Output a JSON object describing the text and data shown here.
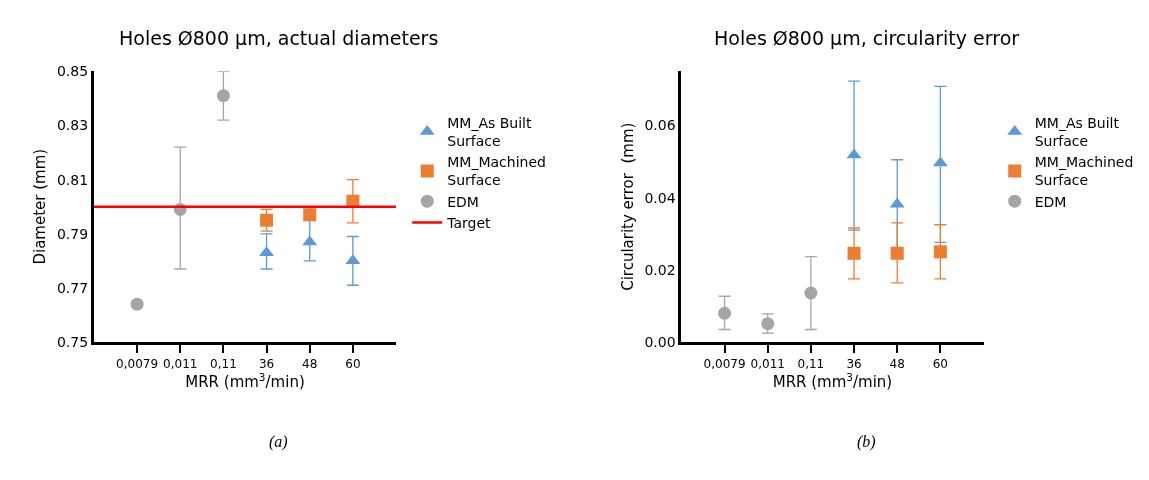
{
  "chart_data": [
    {
      "type": "scatter",
      "title": "Holes Ø800 µm, actual diameters",
      "xlabel": "MRR (mm$^{3}$/min)",
      "ylabel": "Diameter (mm)",
      "categories": [
        "0,0079",
        "0,011",
        "0,11",
        "36",
        "48",
        "60"
      ],
      "ylim": [
        0.75,
        0.85
      ],
      "yticks": [
        0.75,
        0.77,
        0.79,
        0.81,
        0.83,
        0.85
      ],
      "legend": "right",
      "series": [
        {
          "name": "MM_As Built Surface",
          "color": "#5b9bd5",
          "marker": "triangle",
          "values": [
            null,
            null,
            null,
            0.783,
            0.787,
            0.78
          ],
          "errors": [
            null,
            null,
            null,
            [
              0.777,
              0.79
            ],
            [
              0.78,
              0.795
            ],
            [
              0.771,
              0.789
            ]
          ]
        },
        {
          "name": "MM_Machined Surface",
          "color": "#ed7d31",
          "marker": "square",
          "values": [
            null,
            null,
            null,
            0.795,
            0.797,
            0.802
          ],
          "errors": [
            null,
            null,
            null,
            [
              0.791,
              0.799
            ],
            [
              0.795,
              0.799
            ],
            [
              0.794,
              0.81
            ]
          ]
        },
        {
          "name": "EDM",
          "color": "#a5a5a5",
          "marker": "circle",
          "values": [
            0.764,
            0.799,
            0.841,
            null,
            null,
            null
          ],
          "errors": [
            null,
            [
              0.777,
              0.822
            ],
            [
              0.832,
              0.85
            ],
            null,
            null,
            null
          ]
        }
      ],
      "ref_lines": [
        {
          "axis": "y",
          "value": 0.8,
          "label": "Target",
          "color": "#ff0000"
        }
      ],
      "annotations": [
        "(a)"
      ]
    },
    {
      "type": "scatter",
      "title": "Holes Ø800 µm, circularity error",
      "xlabel": "MRR (mm$^{3}$/min)",
      "ylabel": "Circularity error  (mm)",
      "categories": [
        "0,0079",
        "0,011",
        "0,11",
        "36",
        "48",
        "60"
      ],
      "ylim": [
        0,
        0.075
      ],
      "yticks": [
        {
          "value": 0,
          "label": "0.00"
        },
        {
          "value": 0.02,
          "label": "0.02"
        },
        {
          "value": 0.04,
          "label": "0.04"
        },
        {
          "value": 0.06,
          "label": "0.06"
        }
      ],
      "legend": "right",
      "series": [
        {
          "name": "MM_As Built Surface",
          "color": "#5b9bd5",
          "marker": "triangle",
          "values": [
            null,
            null,
            null,
            0.0518,
            0.0382,
            0.0496
          ],
          "errors": [
            null,
            null,
            null,
            [
              0.031,
              0.0723
            ],
            [
              0.026,
              0.0505
            ],
            [
              0.0276,
              0.0708
            ]
          ]
        },
        {
          "name": "MM_Machined Surface",
          "color": "#ed7d31",
          "marker": "square",
          "values": [
            null,
            null,
            null,
            0.0246,
            0.0246,
            0.025
          ],
          "errors": [
            null,
            null,
            null,
            [
              0.0175,
              0.0316
            ],
            [
              0.0164,
              0.033
            ],
            [
              0.0175,
              0.0325
            ]
          ]
        },
        {
          "name": "EDM",
          "color": "#a5a5a5",
          "marker": "circle",
          "values": [
            0.008,
            0.0051,
            0.0136,
            null,
            null,
            null
          ],
          "errors": [
            [
              0.0035,
              0.0127
            ],
            [
              0.0025,
              0.0078
            ],
            [
              0.0035,
              0.0237
            ],
            null,
            null,
            null
          ]
        }
      ],
      "annotations": [
        "(b)"
      ]
    }
  ]
}
